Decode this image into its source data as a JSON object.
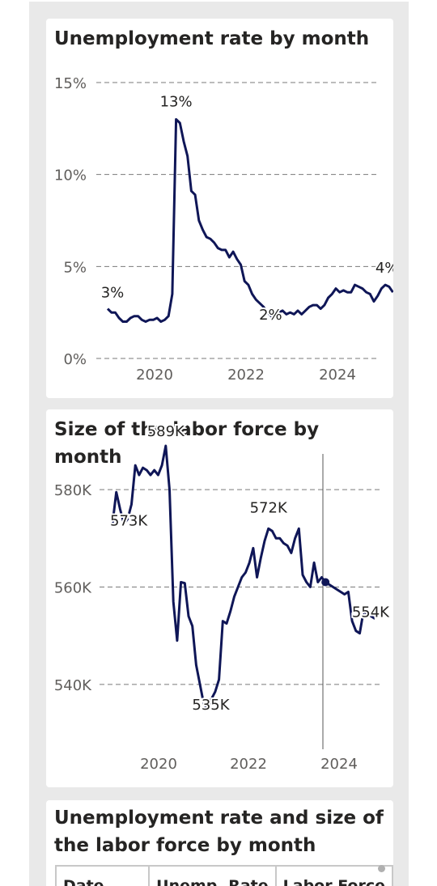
{
  "colors": {
    "line": "#0f1657",
    "grid": "#7a7a7a",
    "background": "#e9e9e9"
  },
  "card1": {
    "title": "Unemployment rate by month"
  },
  "card2": {
    "title": "Size of the labor force by month"
  },
  "card3": {
    "title_line1": "Unemployment rate and size of",
    "title_line2": "the labor force by month",
    "columns": [
      "Date",
      "Unemp. Rate",
      "Labor Force"
    ]
  },
  "chart_data": [
    {
      "type": "line",
      "title": "Unemployment rate by month",
      "x_ticks": [
        "2020",
        "2022",
        "2024"
      ],
      "y_ticks": [
        "0%",
        "5%",
        "10%",
        "15%"
      ],
      "ylim": [
        0,
        15
      ],
      "grid": true,
      "x_start": "2019-01",
      "series": [
        {
          "values": [
            2.7,
            2.5,
            2.5,
            2.2,
            2.0,
            2.0,
            2.2,
            2.3,
            2.3,
            2.1,
            2.0,
            2.1,
            2.1,
            2.2,
            2.0,
            2.1,
            2.3,
            3.5,
            13.0,
            12.8,
            11.8,
            11.0,
            9.1,
            8.9,
            7.5,
            7.0,
            6.6,
            6.5,
            6.3,
            6.0,
            5.9,
            5.9,
            5.5,
            5.8,
            5.4,
            5.1,
            4.2,
            4.0,
            3.5,
            3.2,
            3.0,
            2.8,
            2.5,
            2.3,
            2.5,
            2.5,
            2.6,
            2.4,
            2.5,
            2.4,
            2.6,
            2.4,
            2.6,
            2.8,
            2.9,
            2.9,
            2.7,
            2.9,
            3.3,
            3.5,
            3.8,
            3.6,
            3.7,
            3.6,
            3.6,
            4.0,
            3.9,
            3.8,
            3.6,
            3.5,
            3.1,
            3.4,
            3.8,
            4.0,
            3.9,
            3.6
          ],
          "point_labels": [
            {
              "index": 0,
              "text": "3%"
            },
            {
              "index": 18,
              "text": "13%"
            },
            {
              "index": 42,
              "text": "2%"
            },
            {
              "index": 73,
              "text": "4%"
            }
          ]
        }
      ]
    },
    {
      "type": "line",
      "title": "Size of the labor force by month",
      "x_ticks": [
        "2020",
        "2022",
        "2024"
      ],
      "y_ticks": [
        "540K",
        "560K",
        "580K"
      ],
      "ylim": [
        532,
        590
      ],
      "grid": true,
      "x_start": "2019-01",
      "series": [
        {
          "values": [
            573,
            579.5,
            576,
            573,
            574,
            577,
            585,
            583,
            584.5,
            584,
            583,
            584,
            583,
            585,
            589,
            580,
            557,
            549,
            561,
            560.8,
            554,
            552,
            544,
            540,
            536,
            535,
            537,
            538.5,
            541,
            553,
            552.5,
            555,
            558,
            560,
            562,
            563,
            565,
            568,
            562,
            566,
            569.5,
            572,
            571.5,
            570,
            570,
            569,
            568.5,
            567,
            570,
            572,
            562.5,
            561,
            560,
            565,
            561,
            562,
            561,
            560.5,
            560,
            559.5,
            559,
            558.5,
            559,
            553,
            551,
            550.5,
            555,
            554.5,
            554,
            553.5
          ],
          "point_labels": [
            {
              "index": 3,
              "text": "573K"
            },
            {
              "index": 14,
              "text": "589K"
            },
            {
              "index": 25,
              "text": "535K"
            },
            {
              "index": 41,
              "text": "572K"
            },
            {
              "index": 67,
              "text": "554K"
            }
          ],
          "highlight_index": 56
        }
      ]
    }
  ]
}
